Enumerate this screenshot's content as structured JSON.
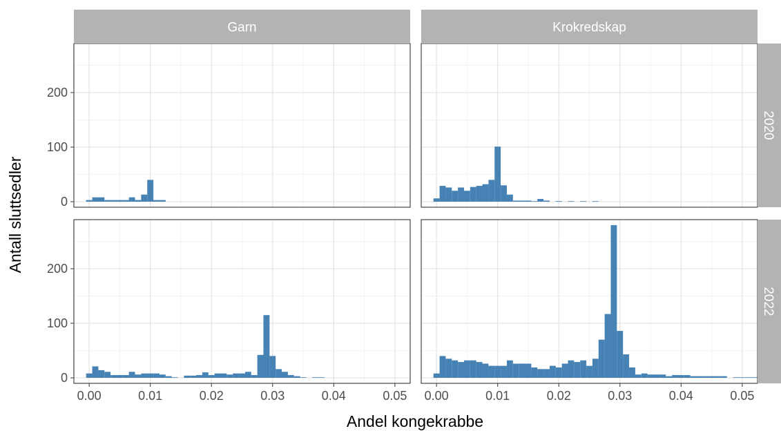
{
  "chart_data": {
    "type": "bar",
    "subtype": "faceted-histogram",
    "xlabel": "Andel kongekrabbe",
    "ylabel": "Antall sluttsedler",
    "xlim": [
      -0.0025,
      0.0525
    ],
    "ylim": [
      0,
      290
    ],
    "x_ticks": [
      0.0,
      0.01,
      0.02,
      0.03,
      0.04,
      0.05
    ],
    "x_tick_labels": [
      "0.00",
      "0.01",
      "0.02",
      "0.03",
      "0.04",
      "0.05"
    ],
    "y_ticks": [
      0,
      100,
      200
    ],
    "y_tick_labels": [
      "0",
      "100",
      "200"
    ],
    "grid": true,
    "bar_color": "#4682b4",
    "bin_width": 0.001,
    "columns": [
      "Garn",
      "Krokredskap"
    ],
    "rows": [
      "2020",
      "2022"
    ],
    "panels": [
      {
        "column": "Garn",
        "row": "2020",
        "bins": [
          [
            0.0,
            3
          ],
          [
            0.001,
            8
          ],
          [
            0.002,
            8
          ],
          [
            0.003,
            3
          ],
          [
            0.004,
            3
          ],
          [
            0.005,
            3
          ],
          [
            0.006,
            3
          ],
          [
            0.007,
            8
          ],
          [
            0.008,
            3
          ],
          [
            0.009,
            13
          ],
          [
            0.01,
            40
          ],
          [
            0.011,
            3
          ],
          [
            0.012,
            3
          ]
        ]
      },
      {
        "column": "Krokredskap",
        "row": "2020",
        "bins": [
          [
            0.0,
            6
          ],
          [
            0.001,
            29
          ],
          [
            0.002,
            26
          ],
          [
            0.003,
            20
          ],
          [
            0.004,
            26
          ],
          [
            0.005,
            20
          ],
          [
            0.006,
            27
          ],
          [
            0.007,
            29
          ],
          [
            0.008,
            32
          ],
          [
            0.009,
            40
          ],
          [
            0.01,
            101
          ],
          [
            0.011,
            30
          ],
          [
            0.012,
            13
          ],
          [
            0.013,
            2
          ],
          [
            0.014,
            2
          ],
          [
            0.015,
            2
          ],
          [
            0.016,
            1
          ],
          [
            0.017,
            5
          ],
          [
            0.018,
            2
          ],
          [
            0.02,
            1
          ],
          [
            0.022,
            1
          ],
          [
            0.024,
            1
          ],
          [
            0.026,
            1
          ]
        ]
      },
      {
        "column": "Garn",
        "row": "2022",
        "bins": [
          [
            0.0,
            8
          ],
          [
            0.001,
            21
          ],
          [
            0.002,
            14
          ],
          [
            0.003,
            11
          ],
          [
            0.004,
            5
          ],
          [
            0.005,
            5
          ],
          [
            0.006,
            5
          ],
          [
            0.007,
            11
          ],
          [
            0.008,
            6
          ],
          [
            0.009,
            8
          ],
          [
            0.01,
            8
          ],
          [
            0.011,
            8
          ],
          [
            0.012,
            6
          ],
          [
            0.013,
            3
          ],
          [
            0.014,
            1
          ],
          [
            0.016,
            4
          ],
          [
            0.017,
            4
          ],
          [
            0.018,
            5
          ],
          [
            0.019,
            10
          ],
          [
            0.02,
            5
          ],
          [
            0.021,
            8
          ],
          [
            0.022,
            8
          ],
          [
            0.023,
            6
          ],
          [
            0.024,
            8
          ],
          [
            0.025,
            8
          ],
          [
            0.026,
            11
          ],
          [
            0.027,
            5
          ],
          [
            0.028,
            42
          ],
          [
            0.029,
            115
          ],
          [
            0.03,
            40
          ],
          [
            0.031,
            16
          ],
          [
            0.032,
            11
          ],
          [
            0.033,
            5
          ],
          [
            0.034,
            3
          ],
          [
            0.035,
            1
          ],
          [
            0.037,
            1
          ],
          [
            0.038,
            1
          ]
        ]
      },
      {
        "column": "Krokredskap",
        "row": "2022",
        "bins": [
          [
            0.0,
            8
          ],
          [
            0.001,
            40
          ],
          [
            0.002,
            35
          ],
          [
            0.003,
            32
          ],
          [
            0.004,
            29
          ],
          [
            0.005,
            32
          ],
          [
            0.006,
            32
          ],
          [
            0.007,
            29
          ],
          [
            0.008,
            26
          ],
          [
            0.009,
            22
          ],
          [
            0.01,
            22
          ],
          [
            0.011,
            22
          ],
          [
            0.012,
            32
          ],
          [
            0.013,
            26
          ],
          [
            0.014,
            26
          ],
          [
            0.015,
            26
          ],
          [
            0.016,
            19
          ],
          [
            0.017,
            16
          ],
          [
            0.018,
            16
          ],
          [
            0.019,
            22
          ],
          [
            0.02,
            19
          ],
          [
            0.021,
            26
          ],
          [
            0.022,
            32
          ],
          [
            0.023,
            29
          ],
          [
            0.024,
            32
          ],
          [
            0.025,
            22
          ],
          [
            0.026,
            35
          ],
          [
            0.027,
            70
          ],
          [
            0.028,
            117
          ],
          [
            0.029,
            280
          ],
          [
            0.03,
            86
          ],
          [
            0.031,
            43
          ],
          [
            0.032,
            19
          ],
          [
            0.033,
            6
          ],
          [
            0.034,
            8
          ],
          [
            0.035,
            6
          ],
          [
            0.036,
            6
          ],
          [
            0.037,
            6
          ],
          [
            0.038,
            3
          ],
          [
            0.039,
            5
          ],
          [
            0.04,
            5
          ],
          [
            0.041,
            5
          ],
          [
            0.042,
            3
          ],
          [
            0.043,
            3
          ],
          [
            0.044,
            3
          ],
          [
            0.045,
            3
          ],
          [
            0.046,
            3
          ],
          [
            0.047,
            3
          ],
          [
            0.049,
            1
          ],
          [
            0.05,
            1
          ],
          [
            0.051,
            1
          ],
          [
            0.052,
            1
          ]
        ]
      }
    ]
  }
}
